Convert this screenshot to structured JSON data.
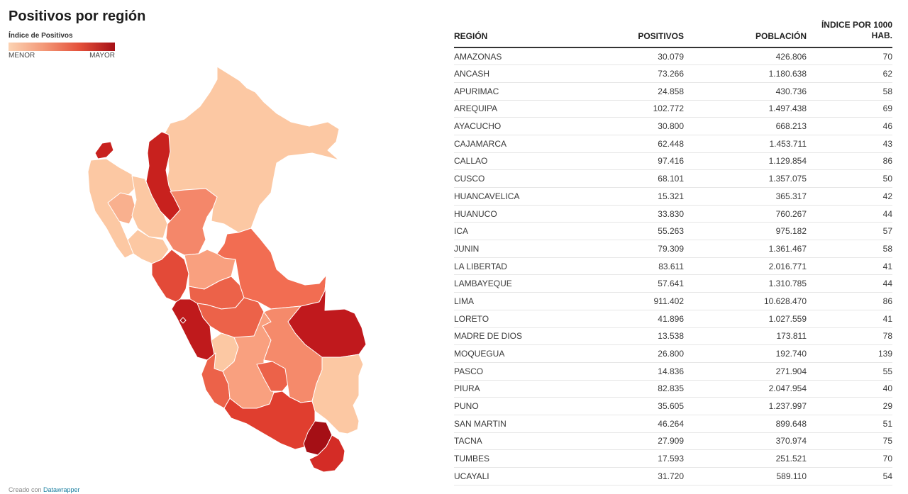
{
  "title": "Positivos por región",
  "legend": {
    "title": "Índice de Positivos",
    "min_label": "MENOR",
    "max_label": "MAYOR",
    "colors": [
      "#fcd3b3",
      "#f39877",
      "#e4513b",
      "#a50f15"
    ]
  },
  "footer": {
    "prefix": "Creado con ",
    "link": "Datawrapper"
  },
  "table": {
    "headers": [
      "REGIÓN",
      "POSITIVOS",
      "POBLACIÓN",
      "ÍNDICE POR 1000 HAB."
    ],
    "rows": [
      [
        "AMAZONAS",
        "30.079",
        "426.806",
        "70"
      ],
      [
        "ANCASH",
        "73.266",
        "1.180.638",
        "62"
      ],
      [
        "APURIMAC",
        "24.858",
        "430.736",
        "58"
      ],
      [
        "AREQUIPA",
        "102.772",
        "1.497.438",
        "69"
      ],
      [
        "AYACUCHO",
        "30.800",
        "668.213",
        "46"
      ],
      [
        "CAJAMARCA",
        "62.448",
        "1.453.711",
        "43"
      ],
      [
        "CALLAO",
        "97.416",
        "1.129.854",
        "86"
      ],
      [
        "CUSCO",
        "68.101",
        "1.357.075",
        "50"
      ],
      [
        "HUANCAVELICA",
        "15.321",
        "365.317",
        "42"
      ],
      [
        "HUANUCO",
        "33.830",
        "760.267",
        "44"
      ],
      [
        "ICA",
        "55.263",
        "975.182",
        "57"
      ],
      [
        "JUNIN",
        "79.309",
        "1.361.467",
        "58"
      ],
      [
        "LA LIBERTAD",
        "83.611",
        "2.016.771",
        "41"
      ],
      [
        "LAMBAYEQUE",
        "57.641",
        "1.310.785",
        "44"
      ],
      [
        "LIMA",
        "911.402",
        "10.628.470",
        "86"
      ],
      [
        "LORETO",
        "41.896",
        "1.027.559",
        "41"
      ],
      [
        "MADRE DE DIOS",
        "13.538",
        "173.811",
        "78"
      ],
      [
        "MOQUEGUA",
        "26.800",
        "192.740",
        "139"
      ],
      [
        "PASCO",
        "14.836",
        "271.904",
        "55"
      ],
      [
        "PIURA",
        "82.835",
        "2.047.954",
        "40"
      ],
      [
        "PUNO",
        "35.605",
        "1.237.997",
        "29"
      ],
      [
        "SAN MARTIN",
        "46.264",
        "899.648",
        "51"
      ],
      [
        "TACNA",
        "27.909",
        "370.974",
        "75"
      ],
      [
        "TUMBES",
        "17.593",
        "251.521",
        "70"
      ],
      [
        "UCAYALI",
        "31.720",
        "589.110",
        "54"
      ]
    ]
  },
  "map_regions": [
    {
      "name": "TUMBES",
      "color": "#c8211e"
    },
    {
      "name": "PIURA",
      "color": "#fcc8a3"
    },
    {
      "name": "LAMBAYEQUE",
      "color": "#f9b08e"
    },
    {
      "name": "CAJAMARCA",
      "color": "#fcc8a3"
    },
    {
      "name": "AMAZONAS",
      "color": "#c8211e"
    },
    {
      "name": "LORETO",
      "color": "#fcc8a3"
    },
    {
      "name": "LA LIBERTAD",
      "color": "#fcc8a3"
    },
    {
      "name": "SAN MARTIN",
      "color": "#f4876a"
    },
    {
      "name": "ANCASH",
      "color": "#e34a38"
    },
    {
      "name": "HUANUCO",
      "color": "#f9a07f"
    },
    {
      "name": "PASCO",
      "color": "#ec6249"
    },
    {
      "name": "UCAYALI",
      "color": "#f26d52"
    },
    {
      "name": "JUNIN",
      "color": "#ec6249"
    },
    {
      "name": "LIMA",
      "color": "#bf1a1c"
    },
    {
      "name": "CALLAO",
      "color": "#a50f15"
    },
    {
      "name": "HUANCAVELICA",
      "color": "#fcc8a3"
    },
    {
      "name": "ICA",
      "color": "#ec6249"
    },
    {
      "name": "AYACUCHO",
      "color": "#f9a07f"
    },
    {
      "name": "APURIMAC",
      "color": "#ec6249"
    },
    {
      "name": "CUSCO",
      "color": "#f58a6b"
    },
    {
      "name": "MADRE DE DIOS",
      "color": "#c0191d"
    },
    {
      "name": "PUNO",
      "color": "#fcc8a3"
    },
    {
      "name": "AREQUIPA",
      "color": "#e03e2f"
    },
    {
      "name": "MOQUEGUA",
      "color": "#a50f15"
    },
    {
      "name": "TACNA",
      "color": "#d42c26"
    }
  ]
}
